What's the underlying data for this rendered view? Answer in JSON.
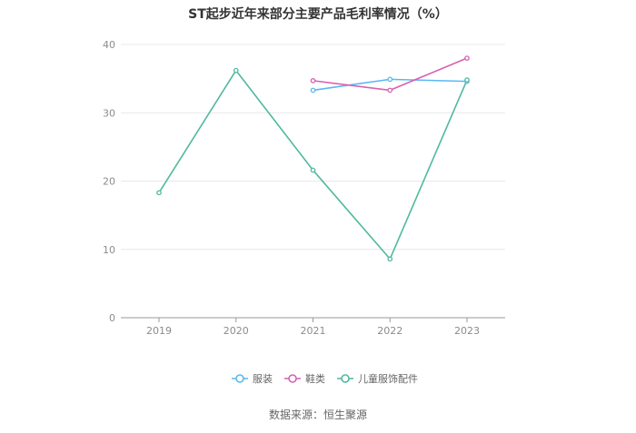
{
  "chart_data": {
    "type": "line",
    "title": "ST起步近年来部分主要产品毛利率情况（%）",
    "x": [
      "2019",
      "2020",
      "2021",
      "2022",
      "2023"
    ],
    "ylim": [
      0,
      40
    ],
    "yticks": [
      "0",
      "10",
      "20",
      "30",
      "40"
    ],
    "grid": true,
    "legend_position": "bottom",
    "series": [
      {
        "name": "服装",
        "color": "#5ab8f0",
        "values": [
          null,
          null,
          33.3,
          34.9,
          34.6
        ]
      },
      {
        "name": "鞋类",
        "color": "#d861b0",
        "values": [
          null,
          null,
          34.7,
          33.3,
          38.0
        ]
      },
      {
        "name": "儿童服饰配件",
        "color": "#4fb99f",
        "values": [
          18.3,
          36.2,
          21.6,
          8.6,
          34.8
        ]
      }
    ]
  },
  "source": "数据来源：恒生聚源"
}
